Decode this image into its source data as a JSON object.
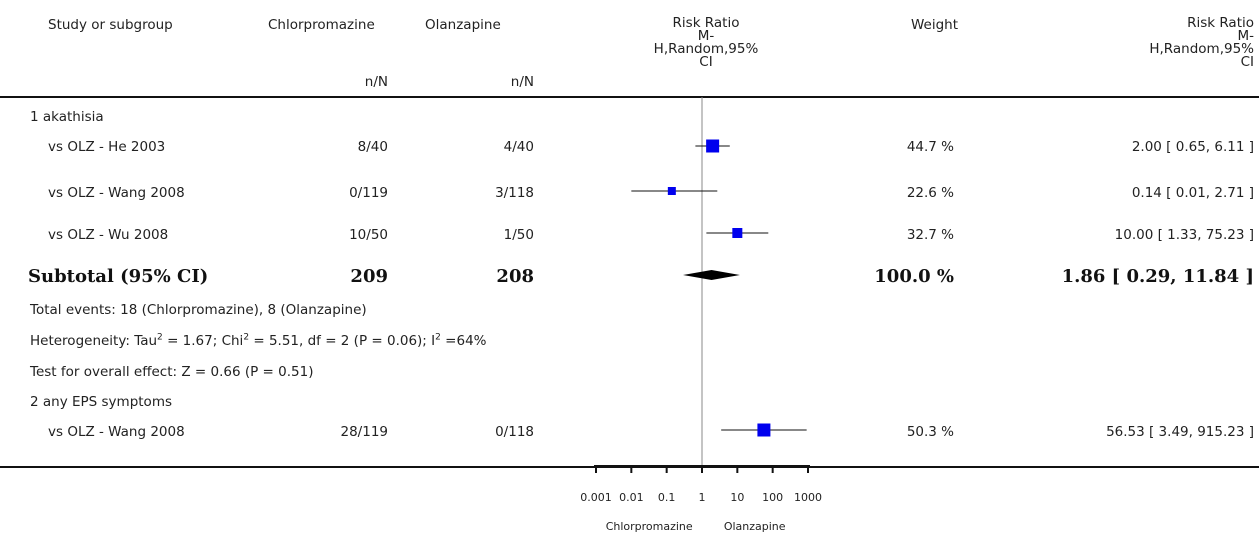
{
  "header": {
    "study": "Study or subgroup",
    "exp": "Chlorpromazine",
    "ctrl": "Olanzapine",
    "rr1": [
      "Risk Ratio",
      "M-",
      "H,Random,95%",
      "CI"
    ],
    "weight": "Weight",
    "rr2": [
      "Risk Ratio",
      "M-",
      "H,Random,95%",
      "CI"
    ],
    "nN_exp": "n/N",
    "nN_ctrl": "n/N"
  },
  "groups": [
    {
      "title": "1 akathisia",
      "rows": [
        {
          "study": "vs OLZ - He 2003",
          "exp": "8/40",
          "ctrl": "4/40",
          "weight": "44.7 %",
          "ci_text": "2.00 [ 0.65, 6.11 ]"
        },
        {
          "study": "vs OLZ - Wang 2008",
          "exp": "0/119",
          "ctrl": "3/118",
          "weight": "22.6 %",
          "ci_text": "0.14 [ 0.01, 2.71 ]"
        },
        {
          "study": "vs OLZ - Wu 2008",
          "exp": "10/50",
          "ctrl": "1/50",
          "weight": "32.7 %",
          "ci_text": "10.00 [ 1.33, 75.23 ]"
        }
      ],
      "subtotal": {
        "label": "Subtotal (95% CI)",
        "exp": "209",
        "ctrl": "208",
        "weight": "100.0 %",
        "ci_text": "1.86 [ 0.29, 11.84 ]"
      },
      "notes": {
        "events": "Total events: 18 (Chlorpromazine), 8 (Olanzapine)",
        "het_tau": "Heterogeneity: Tau",
        "het_chi": " = 1.67; Chi",
        "het_rest": " = 5.51, df = 2 (P = 0.06); I",
        "het_i2": " =64%",
        "sup2": "2",
        "overall": "Test for overall effect: Z = 0.66 (P = 0.51)"
      }
    },
    {
      "title": "2 any EPS symptoms",
      "rows": [
        {
          "study": "vs OLZ - Wang 2008",
          "exp": "28/119",
          "ctrl": "0/118",
          "weight": "50.3 %",
          "ci_text": "56.53 [ 3.49, 915.23 ]"
        }
      ]
    }
  ],
  "axis": {
    "ticks": [
      "0.001",
      "0.01",
      "0.1",
      "1",
      "10",
      "100",
      "1000"
    ],
    "favours_left": "Chlorpromazine",
    "favours_right": "Olanzapine"
  },
  "colors": {
    "marker": "#0000ee",
    "line": "#111111"
  },
  "chart_data": {
    "type": "forest",
    "scale": "log",
    "xlim": [
      0.001,
      1000
    ],
    "reference": 1,
    "studies": [
      {
        "label": "vs OLZ - He 2003",
        "rr": 2.0,
        "lo": 0.65,
        "hi": 6.11,
        "weight": 44.7
      },
      {
        "label": "vs OLZ - Wang 2008",
        "rr": 0.14,
        "lo": 0.01,
        "hi": 2.71,
        "weight": 22.6
      },
      {
        "label": "vs OLZ - Wu 2008",
        "rr": 10.0,
        "lo": 1.33,
        "hi": 75.23,
        "weight": 32.7
      },
      {
        "label": "vs OLZ - Wang 2008",
        "rr": 56.53,
        "lo": 3.49,
        "hi": 915.23,
        "weight": 50.3
      }
    ],
    "subtotals": [
      {
        "label": "Subtotal (95% CI)",
        "rr": 1.86,
        "lo": 0.29,
        "hi": 11.84
      }
    ]
  }
}
